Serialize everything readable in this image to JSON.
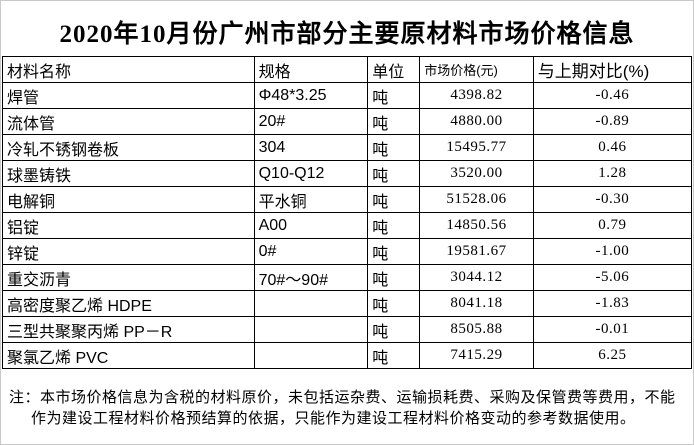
{
  "title": "2020年10月份广州市部分主要原材料市场价格信息",
  "table": {
    "headers": {
      "name": "材料名称",
      "spec": "规格",
      "unit": "单位",
      "price": "市场价格(元)",
      "change": "与上期对比(%)"
    },
    "rows": [
      {
        "name": "焊管",
        "spec": "Φ48*3.25",
        "unit": "吨",
        "price": "4398.82",
        "change": "-0.46"
      },
      {
        "name": "流体管",
        "spec": "20#",
        "unit": "吨",
        "price": "4880.00",
        "change": "-0.89"
      },
      {
        "name": "冷轧不锈钢卷板",
        "spec": "304",
        "unit": "吨",
        "price": "15495.77",
        "change": "0.46"
      },
      {
        "name": "球墨铸铁",
        "spec": "Q10-Q12",
        "unit": "吨",
        "price": "3520.00",
        "change": "1.28"
      },
      {
        "name": "电解铜",
        "spec": "平水铜",
        "unit": "吨",
        "price": "51528.06",
        "change": "-0.30"
      },
      {
        "name": "铝锭",
        "spec": "A00",
        "unit": "吨",
        "price": "14850.56",
        "change": "0.79"
      },
      {
        "name": "锌锭",
        "spec": "0#",
        "unit": "吨",
        "price": "19581.67",
        "change": "-1.00"
      },
      {
        "name": "重交沥青",
        "spec": "70#～90#",
        "unit": "吨",
        "price": "3044.12",
        "change": "-5.06"
      },
      {
        "name": "高密度聚乙烯 HDPE",
        "spec": "",
        "unit": "吨",
        "price": "8041.18",
        "change": "-1.83"
      },
      {
        "name": "三型共聚聚丙烯 PP－R",
        "spec": "",
        "unit": "吨",
        "price": "8505.88",
        "change": "-0.01"
      },
      {
        "name": "聚氯乙烯 PVC",
        "spec": "",
        "unit": "吨",
        "price": "7415.29",
        "change": "6.25"
      }
    ]
  },
  "note": "注：本市场价格信息为含税的材料原价，未包括运杂费、运输损耗费、采购及保管费等费用，不能作为建设工程材料价格预结算的依据，只能作为建设工程材料价格变动的参考数据使用。"
}
